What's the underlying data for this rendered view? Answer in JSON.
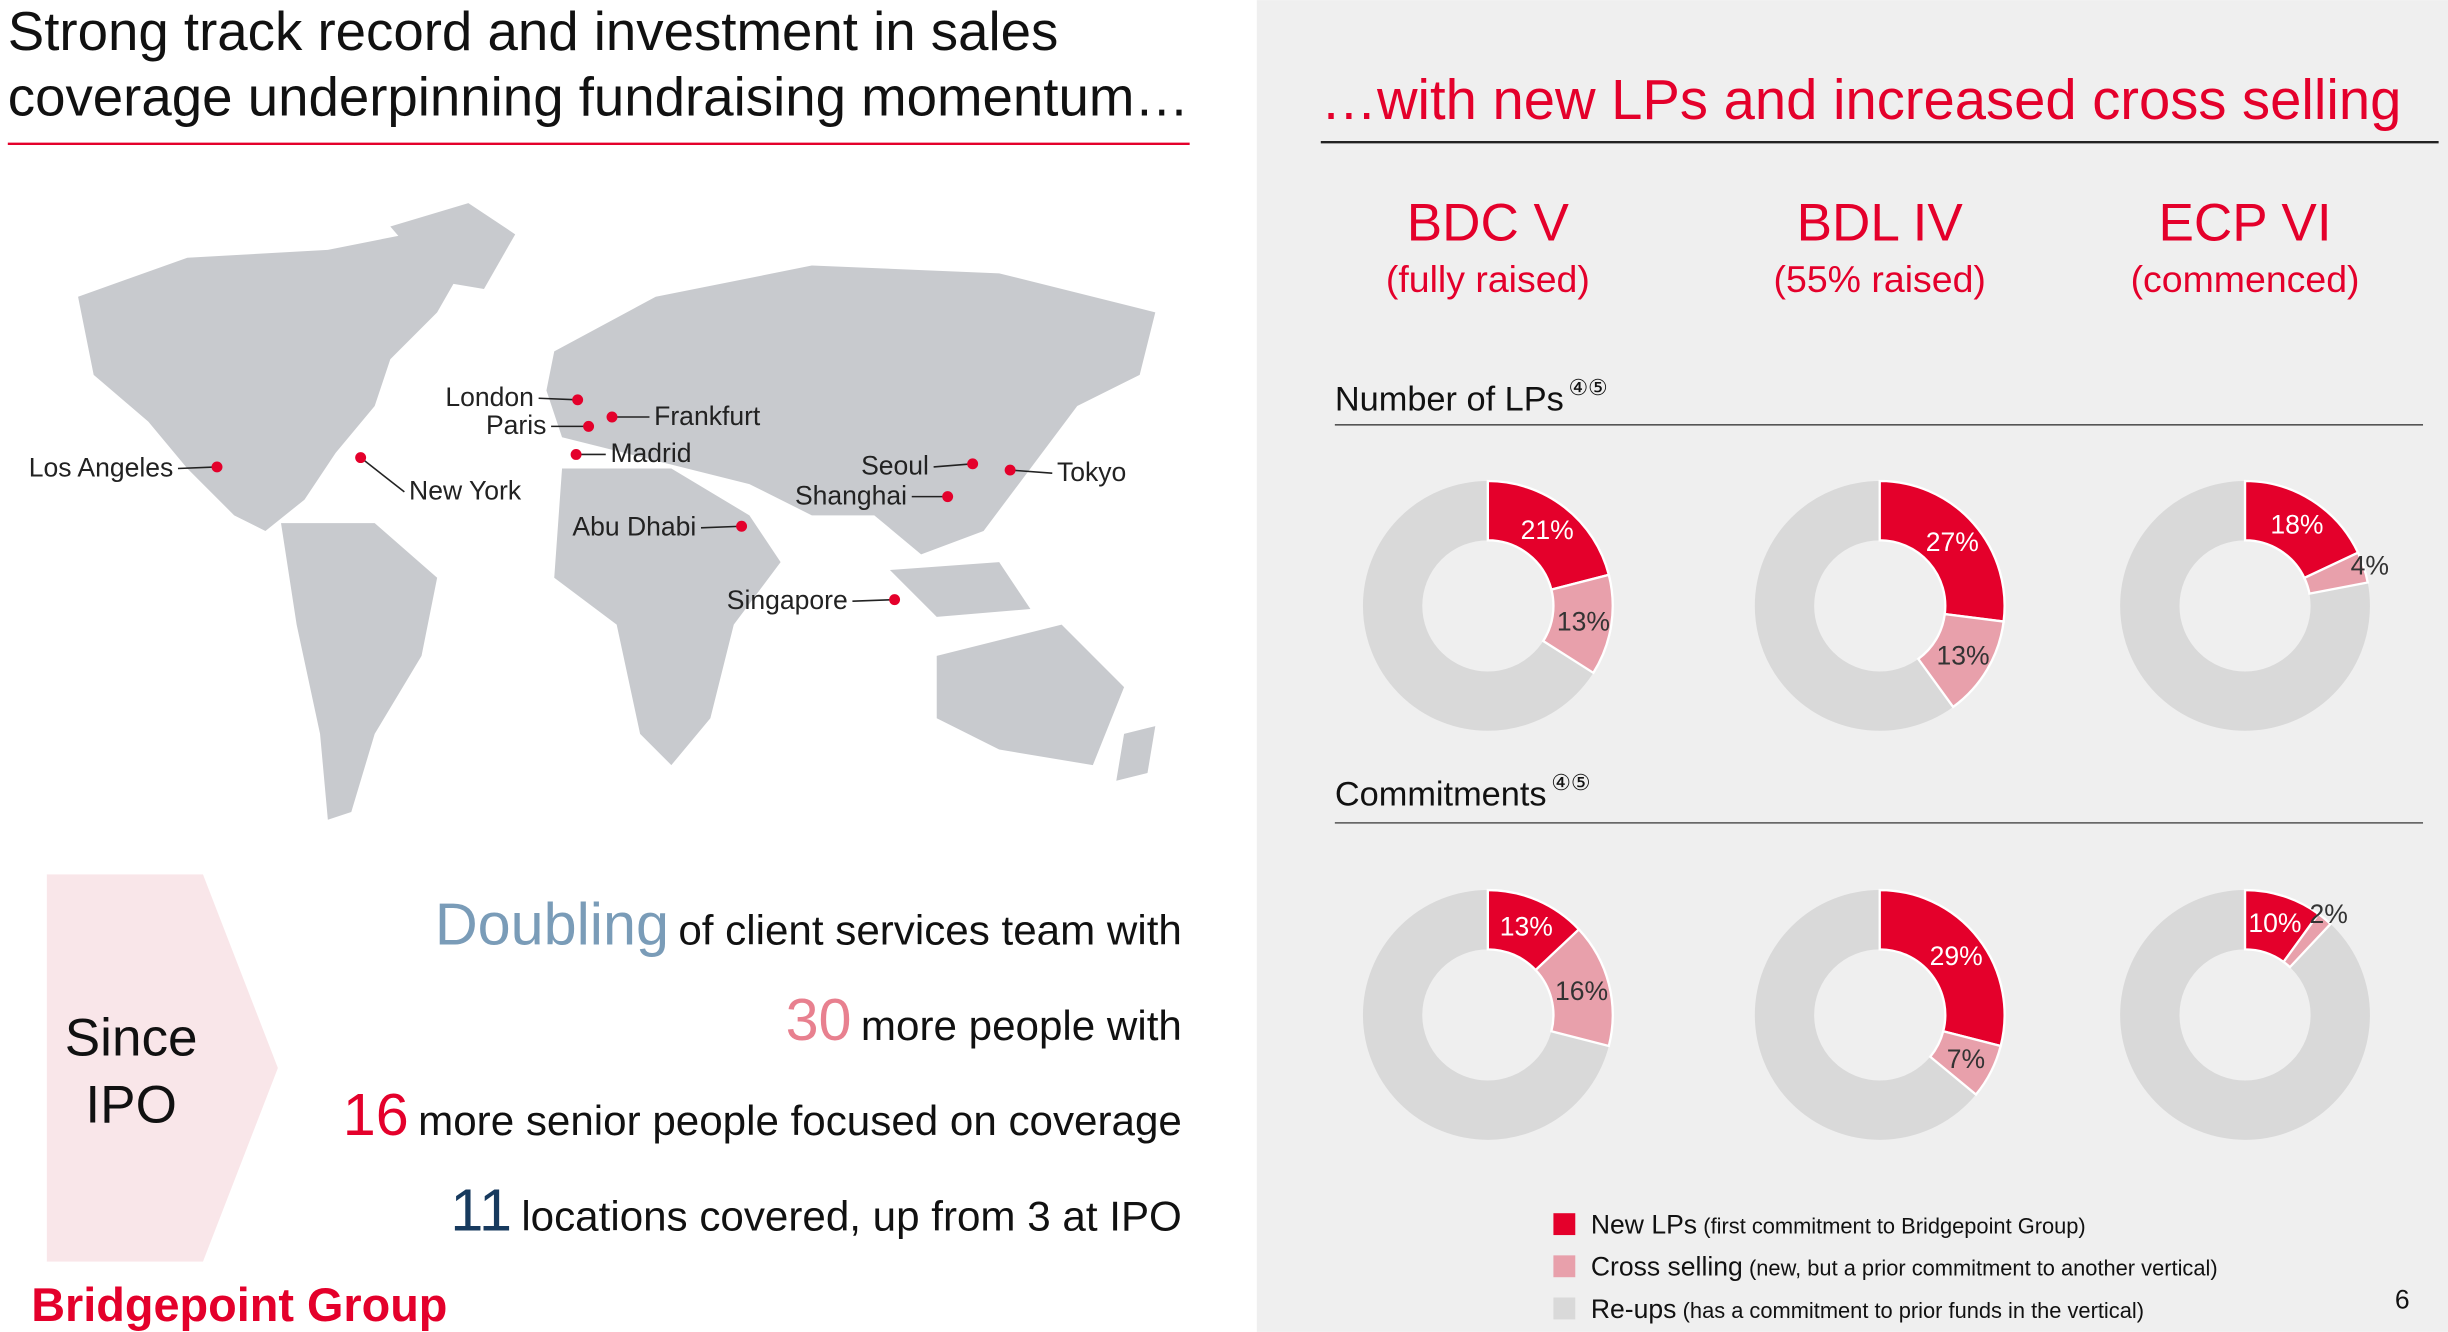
{
  "left": {
    "title": [
      "Strong track record and investment in sales",
      "coverage underpinning fundraising momentum…"
    ],
    "cities": [
      "London",
      "Paris",
      "Frankfurt",
      "Madrid",
      "Los Angeles",
      "New York",
      "Abu Dhabi",
      "Seoul",
      "Shanghai",
      "Tokyo",
      "Singapore"
    ],
    "since": [
      "Since",
      "IPO"
    ],
    "stats": [
      {
        "number": "Doubling",
        "text": "of client services team with"
      },
      {
        "number": "30",
        "text": "more people with"
      },
      {
        "number": "16",
        "text": "more senior people focused on coverage"
      },
      {
        "number": "11",
        "text": "locations covered, up from 3 at IPO"
      }
    ]
  },
  "right": {
    "title": "…with new LPs and increased cross selling",
    "funds": [
      {
        "name": "BDC V",
        "status": "(fully raised)"
      },
      {
        "name": "BDL IV",
        "status": "(55% raised)"
      },
      {
        "name": "ECP VI",
        "status": "(commenced)"
      }
    ],
    "rows": [
      {
        "label": "Number of LPs",
        "notes": "④⑤",
        "donuts": [
          {
            "values": [
              21,
              13
            ],
            "value_labels": [
              "21%",
              "13%"
            ]
          },
          {
            "values": [
              27,
              13
            ],
            "value_labels": [
              "27%",
              "13%"
            ]
          },
          {
            "values": [
              18,
              4
            ],
            "value_labels": [
              "18%",
              "4%"
            ]
          }
        ]
      },
      {
        "label": "Commitments",
        "notes": "④⑤",
        "donuts": [
          {
            "values": [
              13,
              16
            ],
            "value_labels": [
              "13%",
              "16%"
            ]
          },
          {
            "values": [
              29,
              7
            ],
            "value_labels": [
              "29%",
              "7%"
            ]
          },
          {
            "values": [
              10,
              2
            ],
            "value_labels": [
              "10%",
              "2%"
            ]
          }
        ]
      }
    ],
    "legend": [
      {
        "name": "New LPs",
        "note": "(first commitment to Bridgepoint Group)",
        "color": "#e4002b"
      },
      {
        "name": "Cross selling",
        "note": "(new, but a prior commitment to another vertical)",
        "color": "#e8a0ab"
      },
      {
        "name": "Re-ups",
        "note": "(has a commitment to prior funds in the vertical)",
        "color": "#d9d9d9"
      }
    ]
  },
  "footer": {
    "brand": "Bridgepoint Group",
    "page": "6"
  }
}
